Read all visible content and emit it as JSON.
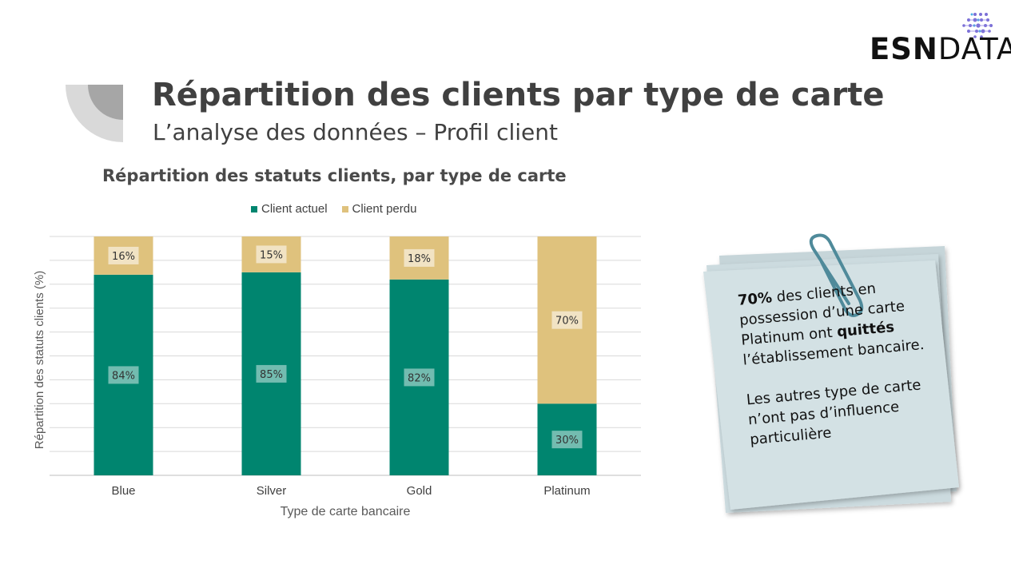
{
  "slide": {
    "title": "Répartition des clients par type de carte",
    "subtitle": "L’analyse des données – Profil client"
  },
  "logo": {
    "text_bold": "ESN",
    "text_light": "DATA"
  },
  "chart_data": {
    "type": "bar",
    "stacked": true,
    "title": "Répartition des statuts clients, par type de carte",
    "xlabel": "Type de carte bancaire",
    "ylabel": "Répartition des statuts clients (%)",
    "categories": [
      "Blue",
      "Silver",
      "Gold",
      "Platinum"
    ],
    "series": [
      {
        "name": "Client actuel",
        "values": [
          84,
          85,
          82,
          30
        ],
        "labels": [
          "84%",
          "85%",
          "82%",
          "30%"
        ],
        "color": "#00856f"
      },
      {
        "name": "Client perdu",
        "values": [
          16,
          15,
          18,
          70
        ],
        "labels": [
          "16%",
          "15%",
          "18%",
          "70%"
        ],
        "color": "#dfc27d"
      }
    ],
    "ylim": [
      0,
      100
    ],
    "grid": true,
    "legend_position": "top"
  },
  "note": {
    "highlight": "70%",
    "line_part1": " des clients en possession d’une carte Platinum ont ",
    "emphasis": "quittés",
    "line_part2": " l’établissement bancaire.",
    "second_paragraph": "Les autres type de carte n’ont pas d’influence particulière"
  },
  "colors": {
    "accent_green": "#00856f",
    "accent_gold": "#dfc27d",
    "note_paper": "#d3e1e4"
  }
}
